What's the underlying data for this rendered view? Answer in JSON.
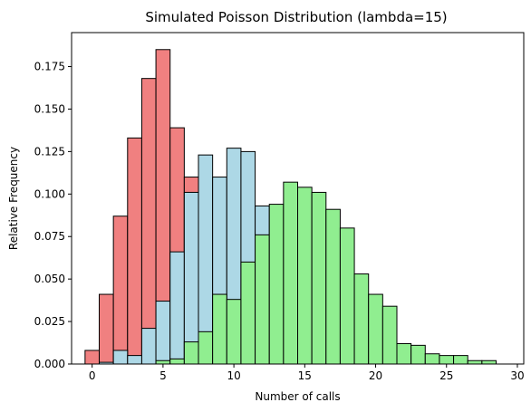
{
  "chart_data": {
    "type": "bar",
    "title": "Simulated Poisson Distribution (lambda=15)",
    "xlabel": "Number of calls",
    "ylabel": "Relative Frequency",
    "xlim": [
      -1.45,
      30.45
    ],
    "ylim": [
      0,
      0.195
    ],
    "xticks": [
      0,
      5,
      10,
      15,
      20,
      25,
      30
    ],
    "yticks": [
      0.0,
      0.025,
      0.05,
      0.075,
      0.1,
      0.125,
      0.15,
      0.175
    ],
    "ytick_labels": [
      "0.000",
      "0.025",
      "0.050",
      "0.075",
      "0.100",
      "0.125",
      "0.150",
      "0.175"
    ],
    "grid": false,
    "bin_width": 1,
    "series": [
      {
        "color": "#f08080",
        "bins": [
          {
            "x": 0,
            "y": 0.008
          },
          {
            "x": 1,
            "y": 0.041
          },
          {
            "x": 2,
            "y": 0.087
          },
          {
            "x": 3,
            "y": 0.133
          },
          {
            "x": 4,
            "y": 0.168
          },
          {
            "x": 5,
            "y": 0.185
          },
          {
            "x": 6,
            "y": 0.139
          },
          {
            "x": 7,
            "y": 0.11
          },
          {
            "x": 8,
            "y": 0.067
          },
          {
            "x": 9,
            "y": 0.035
          },
          {
            "x": 10,
            "y": 0.017
          },
          {
            "x": 11,
            "y": 0.007
          },
          {
            "x": 12,
            "y": 0.003
          },
          {
            "x": 13,
            "y": 0.001
          }
        ]
      },
      {
        "color": "#add8e6",
        "bins": [
          {
            "x": 1,
            "y": 0.001
          },
          {
            "x": 2,
            "y": 0.008
          },
          {
            "x": 3,
            "y": 0.005
          },
          {
            "x": 4,
            "y": 0.021
          },
          {
            "x": 5,
            "y": 0.037
          },
          {
            "x": 6,
            "y": 0.066
          },
          {
            "x": 7,
            "y": 0.101
          },
          {
            "x": 8,
            "y": 0.123
          },
          {
            "x": 9,
            "y": 0.11
          },
          {
            "x": 10,
            "y": 0.127
          },
          {
            "x": 11,
            "y": 0.125
          },
          {
            "x": 12,
            "y": 0.093
          },
          {
            "x": 13,
            "y": 0.072
          },
          {
            "x": 14,
            "y": 0.052
          },
          {
            "x": 15,
            "y": 0.032
          },
          {
            "x": 16,
            "y": 0.019
          },
          {
            "x": 17,
            "y": 0.01
          },
          {
            "x": 18,
            "y": 0.005
          },
          {
            "x": 19,
            "y": 0.002
          }
        ]
      },
      {
        "color": "#90ee90",
        "bins": [
          {
            "x": 5,
            "y": 0.002
          },
          {
            "x": 6,
            "y": 0.003
          },
          {
            "x": 7,
            "y": 0.013
          },
          {
            "x": 8,
            "y": 0.019
          },
          {
            "x": 9,
            "y": 0.041
          },
          {
            "x": 10,
            "y": 0.038
          },
          {
            "x": 11,
            "y": 0.06
          },
          {
            "x": 12,
            "y": 0.076
          },
          {
            "x": 13,
            "y": 0.094
          },
          {
            "x": 14,
            "y": 0.107
          },
          {
            "x": 15,
            "y": 0.104
          },
          {
            "x": 16,
            "y": 0.101
          },
          {
            "x": 17,
            "y": 0.091
          },
          {
            "x": 18,
            "y": 0.08
          },
          {
            "x": 19,
            "y": 0.053
          },
          {
            "x": 20,
            "y": 0.041
          },
          {
            "x": 21,
            "y": 0.034
          },
          {
            "x": 22,
            "y": 0.012
          },
          {
            "x": 23,
            "y": 0.011
          },
          {
            "x": 24,
            "y": 0.006
          },
          {
            "x": 25,
            "y": 0.005
          },
          {
            "x": 26,
            "y": 0.005
          },
          {
            "x": 27,
            "y": 0.002
          },
          {
            "x": 28,
            "y": 0.002
          }
        ]
      }
    ]
  }
}
